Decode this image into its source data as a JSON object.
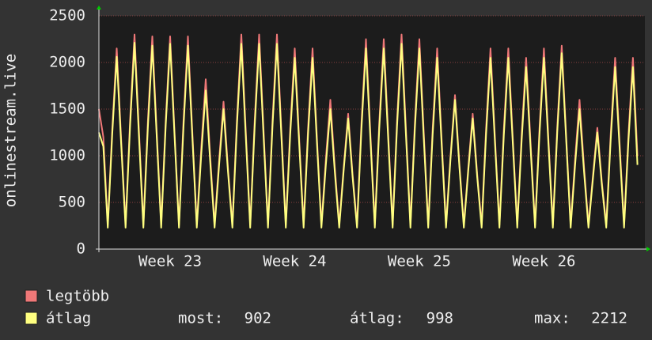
{
  "chart_data": {
    "type": "line",
    "y_label": "onlinestream.live",
    "x": [
      0,
      0.25,
      0.5,
      0.75,
      1,
      1.25,
      1.5,
      1.75,
      2,
      2.25,
      2.5,
      2.75,
      3,
      3.25,
      3.5,
      3.75,
      4,
      4.25,
      4.5,
      4.75,
      5,
      5.25,
      5.5,
      5.75,
      6,
      6.25,
      6.5,
      6.75,
      7,
      7.25,
      7.5,
      7.75,
      8,
      8.25,
      8.5,
      8.75,
      9,
      9.25,
      9.5,
      9.75,
      10,
      10.25,
      10.5,
      10.75,
      11,
      11.25,
      11.5,
      11.75,
      12,
      12.25,
      12.5,
      12.75,
      13,
      13.25,
      13.5,
      13.75,
      14,
      14.25,
      14.5,
      14.75,
      15,
      15.25,
      15.5,
      15.75,
      16,
      16.25,
      16.5,
      16.75,
      17,
      17.25,
      17.5,
      17.75,
      18,
      18.25,
      18.5,
      18.75,
      19,
      19.25,
      19.5,
      19.75,
      20,
      20.25,
      20.5,
      20.75,
      21,
      21.25,
      21.5,
      21.75,
      22,
      22.25,
      22.5,
      22.75,
      23,
      23.25,
      23.5,
      23.75,
      24,
      24.25,
      24.5,
      24.75,
      25,
      25.25,
      25.5,
      25.75,
      26,
      26.25,
      26.5,
      26.75,
      27,
      27.25,
      27.5,
      27.75,
      28,
      28.25,
      28.5,
      28.75,
      29,
      29.25,
      29.5,
      29.75,
      30,
      30.25
    ],
    "series": [
      {
        "name": "legtöbb",
        "color": "#f07878",
        "values": [
          1500,
          1200,
          260,
          1290,
          2150,
          1180,
          260,
          1380,
          2300,
          1270,
          260,
          1370,
          2280,
          1250,
          260,
          1370,
          2280,
          1250,
          260,
          1370,
          2280,
          1250,
          260,
          1090,
          1820,
          1000,
          260,
          950,
          1580,
          870,
          260,
          1380,
          2300,
          1270,
          260,
          1380,
          2300,
          1270,
          260,
          1380,
          2300,
          1270,
          260,
          1290,
          2150,
          1180,
          260,
          1290,
          2150,
          1180,
          260,
          960,
          1600,
          880,
          260,
          870,
          1450,
          800,
          260,
          1350,
          2250,
          1240,
          260,
          1350,
          2250,
          1240,
          260,
          1380,
          2300,
          1270,
          260,
          1350,
          2250,
          1240,
          260,
          1290,
          2150,
          1180,
          260,
          990,
          1650,
          910,
          260,
          870,
          1450,
          800,
          260,
          1290,
          2150,
          1180,
          260,
          1290,
          2150,
          1180,
          260,
          1230,
          2050,
          1130,
          260,
          1290,
          2150,
          1180,
          260,
          1310,
          2180,
          1200,
          260,
          960,
          1600,
          880,
          260,
          780,
          1300,
          720,
          260,
          1230,
          2050,
          1130,
          260,
          1230,
          2050,
          1000
        ]
      },
      {
        "name": "átlag",
        "color": "#ffff80",
        "values": [
          1250,
          1100,
          230,
          1240,
          2060,
          1130,
          230,
          1320,
          2212,
          1210,
          230,
          1310,
          2180,
          1200,
          230,
          1320,
          2200,
          1210,
          230,
          1310,
          2180,
          1200,
          230,
          1020,
          1700,
          940,
          230,
          900,
          1500,
          830,
          230,
          1320,
          2200,
          1210,
          230,
          1320,
          2200,
          1210,
          230,
          1320,
          2200,
          1210,
          230,
          1230,
          2050,
          1130,
          230,
          1230,
          2050,
          1130,
          230,
          900,
          1500,
          830,
          230,
          840,
          1400,
          770,
          230,
          1290,
          2150,
          1180,
          230,
          1290,
          2150,
          1180,
          230,
          1320,
          2200,
          1210,
          230,
          1290,
          2150,
          1180,
          230,
          1230,
          2050,
          1130,
          230,
          960,
          1600,
          880,
          230,
          840,
          1400,
          770,
          230,
          1230,
          2050,
          1130,
          230,
          1230,
          2050,
          1130,
          230,
          1170,
          1950,
          1070,
          230,
          1230,
          2050,
          1130,
          230,
          1260,
          2100,
          1160,
          230,
          900,
          1500,
          830,
          230,
          750,
          1250,
          690,
          230,
          1170,
          1950,
          1070,
          230,
          1170,
          1950,
          902
        ]
      }
    ],
    "xlim": [
      0,
      30.67
    ],
    "xticks": [
      {
        "value": 4,
        "label": "Week 23"
      },
      {
        "value": 11,
        "label": "Week 24"
      },
      {
        "value": 18,
        "label": "Week 25"
      },
      {
        "value": 25,
        "label": "Week 26"
      }
    ],
    "ylim": [
      0,
      2500
    ],
    "yticks": [
      0,
      500,
      1000,
      1500,
      2000,
      2500
    ],
    "grid": true,
    "stats": [
      {
        "label": "most:",
        "value": 902
      },
      {
        "label": "átlag:",
        "value": 998
      },
      {
        "label": "max:",
        "value": 2212
      }
    ]
  }
}
